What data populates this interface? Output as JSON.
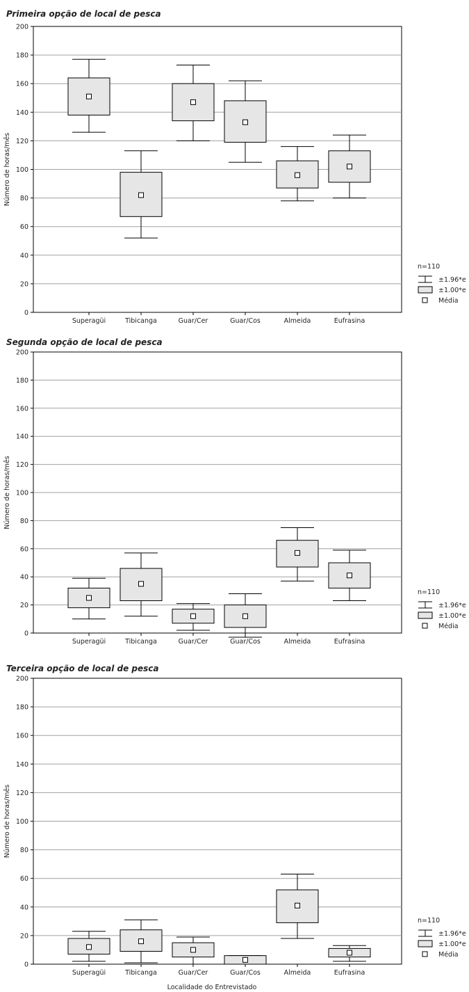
{
  "chart_data": [
    {
      "type": "boxplot",
      "title": "Primeira opção de local de pesca",
      "ylabel": "Número de horas/mês",
      "xlabel": "",
      "ylim": [
        0,
        200
      ],
      "yticks": [
        "0",
        "20",
        "40",
        "60",
        "80",
        "100",
        "120",
        "140",
        "160",
        "180",
        "200"
      ],
      "grid": true,
      "categories": [
        "Superagüi",
        "Tibicanga",
        "Guar/Cer",
        "Guar/Cos",
        "Almeida",
        "Eufrasina"
      ],
      "mean": [
        151,
        82,
        147,
        133,
        96,
        102
      ],
      "box_low": [
        138,
        67,
        134,
        119,
        87,
        91
      ],
      "box_high": [
        164,
        98,
        160,
        148,
        106,
        113
      ],
      "whisker_low": [
        126,
        52,
        120,
        105,
        78,
        80
      ],
      "whisker_high": [
        177,
        113,
        173,
        162,
        116,
        124
      ],
      "legend": {
        "n": "n=110",
        "whisker": "±1.96*e",
        "box": "±1.00*e",
        "mean": "Média"
      }
    },
    {
      "type": "boxplot",
      "title": "Segunda opção de local de pesca",
      "ylabel": "Número de horas/mês",
      "xlabel": "",
      "ylim": [
        0,
        200
      ],
      "yticks": [
        "0",
        "20",
        "40",
        "60",
        "80",
        "100",
        "120",
        "140",
        "160",
        "180",
        "200"
      ],
      "grid": true,
      "categories": [
        "Superagüi",
        "Tibicanga",
        "Guar/Cer",
        "Guar/Cos",
        "Almeida",
        "Eufrasina"
      ],
      "mean": [
        25,
        35,
        12,
        12,
        57,
        41
      ],
      "box_low": [
        18,
        23,
        7,
        4,
        47,
        32
      ],
      "box_high": [
        32,
        46,
        17,
        20,
        66,
        50
      ],
      "whisker_low": [
        10,
        12,
        2,
        -4,
        37,
        23
      ],
      "whisker_high": [
        39,
        57,
        21,
        28,
        75,
        59
      ],
      "legend": {
        "n": "n=110",
        "whisker": "±1.96*e",
        "box": "±1.00*e",
        "mean": "Média"
      }
    },
    {
      "type": "boxplot",
      "title": "Terceira opção de local de pesca",
      "ylabel": "Número de horas/mês",
      "xlabel": "Localidade do Entrevistado",
      "ylim": [
        0,
        200
      ],
      "yticks": [
        "0",
        "20",
        "40",
        "60",
        "80",
        "100",
        "120",
        "140",
        "160",
        "180",
        "200"
      ],
      "grid": true,
      "categories": [
        "Superagüi",
        "Tibicanga",
        "Guar/Cer",
        "Guar/Cos",
        "Almeida",
        "Eufrasina"
      ],
      "mean": [
        12,
        16,
        10,
        3,
        41,
        8
      ],
      "box_low": [
        7,
        9,
        5,
        0,
        29,
        5
      ],
      "box_high": [
        18,
        24,
        15,
        6,
        52,
        11
      ],
      "whisker_low": [
        2,
        1,
        0,
        0,
        18,
        2
      ],
      "whisker_high": [
        23,
        31,
        19,
        6,
        63,
        13
      ],
      "legend": {
        "n": "n=110",
        "whisker": "±1.96*e",
        "box": "±1.00*e",
        "mean": "Média"
      }
    }
  ]
}
